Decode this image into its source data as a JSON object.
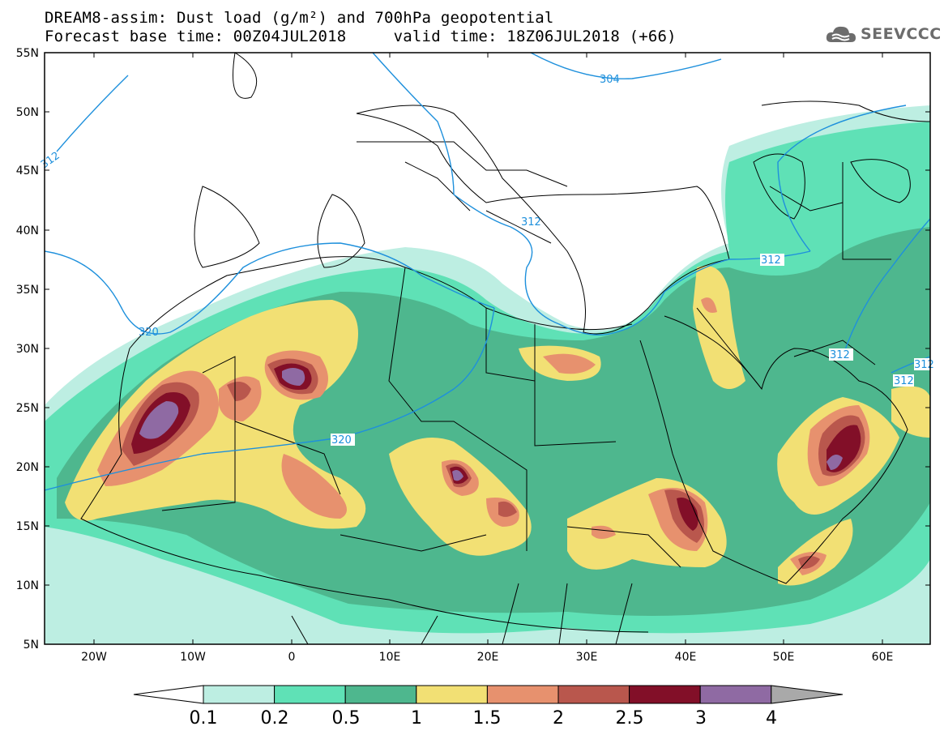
{
  "title": {
    "line1": "DREAM8-assim: Dust load (g/m²) and 700hPa geopotential",
    "line2": "Forecast base time: 00Z04JUL2018     valid time: 18Z06JUL2018 (+66)"
  },
  "logo": {
    "text": "SEEVCCC",
    "icon": "cloud-icon",
    "color": "#6c6c6c"
  },
  "map": {
    "lat_labels": [
      "55N",
      "50N",
      "45N",
      "40N",
      "35N",
      "30N",
      "25N",
      "20N",
      "15N",
      "10N",
      "5N"
    ],
    "lon_labels": [
      "20W",
      "10W",
      "0",
      "10E",
      "20E",
      "30E",
      "40E",
      "50E",
      "60E"
    ],
    "contour_labels": [
      {
        "text": "312",
        "name": "contour-label-312-west"
      },
      {
        "text": "304",
        "name": "contour-label-304"
      },
      {
        "text": "312",
        "name": "contour-label-312-greece"
      },
      {
        "text": "320",
        "name": "contour-label-320-west"
      },
      {
        "text": "320",
        "name": "contour-label-320-central"
      },
      {
        "text": "312",
        "name": "contour-label-312-east"
      },
      {
        "text": "312",
        "name": "contour-label-312-arabia"
      },
      {
        "text": "312",
        "name": "contour-label-312-gulf-a"
      },
      {
        "text": "312",
        "name": "contour-label-312-gulf-b"
      }
    ],
    "contour_color": "#1e90dc"
  },
  "colorbar": {
    "levels": [
      "0.1",
      "0.2",
      "0.5",
      "1",
      "1.5",
      "2",
      "2.5",
      "3",
      "4"
    ],
    "colors": [
      "#ffffff",
      "#bdeee2",
      "#5fe1b6",
      "#4eb78e",
      "#f2e074",
      "#e7916e",
      "#b9574d",
      "#820f28",
      "#8f6aa3",
      "#a9a9a9"
    ]
  }
}
